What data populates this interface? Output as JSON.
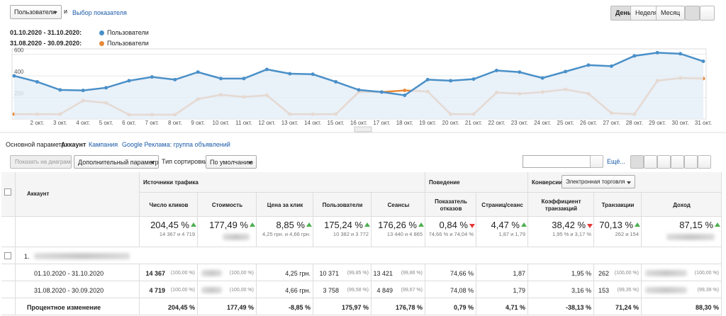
{
  "toolbar": {
    "metric": "Пользователи",
    "and": "и",
    "choose_metric": "Выбор показателя",
    "periods": [
      "День",
      "Неделя",
      "Месяц"
    ]
  },
  "chart_data": {
    "type": "line",
    "ranges": [
      "01.10.2020 - 31.10.2020:",
      "31.08.2020 - 30.09.2020:"
    ],
    "categories": [
      null,
      "2 окт.",
      "3 окт.",
      "4 окт.",
      "5 окт.",
      "6 окт.",
      "7 окт.",
      "8 окт.",
      "9 окт.",
      "10 окт.",
      "11 окт.",
      "12 окт.",
      "13 окт.",
      "14 окт.",
      "15 окт.",
      "16 окт.",
      "17 окт.",
      "18 окт.",
      "19 окт.",
      "20 окт.",
      "21 окт.",
      "22 окт.",
      "23 окт.",
      "24 окт.",
      "25 окт.",
      "26 окт.",
      "27 окт.",
      "28 окт.",
      "29 окт.",
      "30 окт.",
      "31 окт."
    ],
    "series": [
      {
        "name": "Пользователи",
        "color": "#4a90c8",
        "values": [
          400,
          345,
          270,
          265,
          290,
          355,
          390,
          365,
          435,
          375,
          375,
          460,
          420,
          415,
          345,
          270,
          250,
          220,
          365,
          355,
          370,
          450,
          435,
          380,
          440,
          500,
          490,
          585,
          615,
          605,
          535
        ]
      },
      {
        "name": "Пользователи",
        "color": "#e8883a",
        "values": [
          45,
          45,
          45,
          170,
          150,
          40,
          40,
          40,
          185,
          225,
          205,
          220,
          45,
          45,
          45,
          250,
          250,
          265,
          255,
          45,
          45,
          245,
          235,
          250,
          275,
          235,
          55,
          45,
          355,
          380,
          375
        ]
      }
    ],
    "ylim": [
      0,
      650
    ],
    "yticks": [
      200,
      400,
      600
    ],
    "grid": true
  },
  "dimensions": {
    "label": "Основной параметр:",
    "items": [
      "Аккаунт",
      "Кампания",
      "Google Реклама: группа объявлений"
    ]
  },
  "controls": {
    "plot_rows": "Показать на диаграмме",
    "secondary": "Дополнительный параметр",
    "sort_label": "Тип сортировки:",
    "sort": "По умолчанию",
    "more": "Ещё..."
  },
  "table": {
    "groups": [
      "Источники трафика",
      "Поведение",
      "Конверсии"
    ],
    "conversion_select": "Электронная торговля",
    "columns": [
      "Аккаунт",
      "Число кликов",
      "Стоимость",
      "Цена за клик",
      "Пользователи",
      "Сеансы",
      "Показатель отказов",
      "Страниц/сеанс",
      "Коэффициент транзакций",
      "Транзакции",
      "Доход"
    ],
    "summary": [
      {
        "value": "204,45 %",
        "trend": "up",
        "detail": "14 367 и 4 719"
      },
      {
        "value": "177,49 %",
        "trend": "up",
        "detail": null
      },
      {
        "value": "8,85 %",
        "trend": "up",
        "detail": "4,25 грн. и 4,66 грн."
      },
      {
        "value": "175,24 %",
        "trend": "up",
        "detail": "10 382 и 3 772"
      },
      {
        "value": "176,26 %",
        "trend": "up",
        "detail": "13 440 и 4 865"
      },
      {
        "value": "0,84 %",
        "trend": "down",
        "detail": "74,66 % и 74,04 %"
      },
      {
        "value": "4,47 %",
        "trend": "up",
        "detail": "1,87 и 1,79"
      },
      {
        "value": "38,42 %",
        "trend": "down",
        "detail": "1,95 % и 3,17 %"
      },
      {
        "value": "70,13 %",
        "trend": "up",
        "detail": "262 и 154"
      },
      {
        "value": "87,15 %",
        "trend": "up",
        "detail": null
      }
    ],
    "account": "1.",
    "rows": [
      {
        "label": "01.10.2020 - 31.10.2020",
        "cells": [
          [
            "14 367",
            "(100,00 %)"
          ],
          [
            null,
            "(100,00 %)"
          ],
          [
            "4,25 грн.",
            null
          ],
          [
            "10 371",
            "(99,85 %)"
          ],
          [
            "13 421",
            "(99,86 %)"
          ],
          [
            "74,66 %",
            null
          ],
          [
            "1,87",
            null
          ],
          [
            "1,95 %",
            null
          ],
          [
            "262",
            "(100,00 %)"
          ],
          [
            null,
            "(100,00 %)"
          ]
        ]
      },
      {
        "label": "31.08.2020 - 30.09.2020",
        "cells": [
          [
            "4 719",
            "(100,00 %)"
          ],
          [
            null,
            "(100,00 %)"
          ],
          [
            "4,66 грн.",
            null
          ],
          [
            "3 758",
            "(99,58 %)"
          ],
          [
            "4 849",
            "(99,67 %)"
          ],
          [
            "74,08 %",
            null
          ],
          [
            "1,79",
            null
          ],
          [
            "3,16 %",
            null
          ],
          [
            "153",
            "(99,35 %)"
          ],
          [
            null,
            "(99,39 %)"
          ]
        ]
      },
      {
        "label": "Процентное изменение",
        "cells": [
          [
            "204,45 %",
            null
          ],
          [
            "177,49 %",
            null
          ],
          [
            "-8,85 %",
            null
          ],
          [
            "175,97 %",
            null
          ],
          [
            "176,78 %",
            null
          ],
          [
            "0,79 %",
            null
          ],
          [
            "4,71 %",
            null
          ],
          [
            "-38,13 %",
            null
          ],
          [
            "71,24 %",
            null
          ],
          [
            "88,30 %",
            null
          ]
        ]
      }
    ]
  }
}
